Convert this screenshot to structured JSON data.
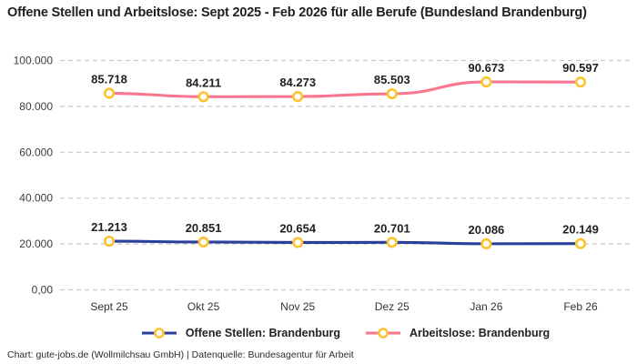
{
  "page": {
    "title": "Offene Stellen und Arbeitslose: Sept 2025 - Feb 2026 für alle Berufe (Bundesland Brandenburg)",
    "footer": "Chart: gute-jobs.de (Wollmilchsau GmbH) | Datenquelle: Bundesagentur für Arbeit"
  },
  "chart_data": {
    "type": "line",
    "title": "Offene Stellen und Arbeitslose: Sept 2025 - Feb 2026 für alle Berufe (Bundesland Brandenburg)",
    "categories": [
      "Sept 25",
      "Okt 25",
      "Nov 25",
      "Dez 25",
      "Jan 26",
      "Feb 26"
    ],
    "series": [
      {
        "name": "Arbeitslose: Brandenburg",
        "color": "#f9768e",
        "values": [
          85718,
          84211,
          84273,
          85503,
          90673,
          90597
        ],
        "labels": [
          "85.718",
          "84.211",
          "84.273",
          "85.503",
          "90.673",
          "90.597"
        ]
      },
      {
        "name": "Offene Stellen: Brandenburg",
        "color": "#2a3f9c",
        "values": [
          21213,
          20851,
          20654,
          20701,
          20086,
          20149
        ],
        "labels": [
          "21.213",
          "20.851",
          "20.654",
          "20.701",
          "20.086",
          "20.149"
        ]
      }
    ],
    "legend_order": [
      1,
      0
    ],
    "marker": {
      "fill": "#ffffff",
      "stroke": "#fdc32f"
    },
    "grid_color": "#c9c9c9",
    "grid_style": "dashed horizontal",
    "legend_position": "bottom",
    "y_axis": {
      "range": [
        0,
        100000
      ],
      "ticks": [
        0,
        20000,
        40000,
        60000,
        80000,
        100000
      ],
      "tick_labels": [
        "0,00",
        "20.000",
        "40.000",
        "60.000",
        "80.000",
        "100.000"
      ]
    }
  }
}
